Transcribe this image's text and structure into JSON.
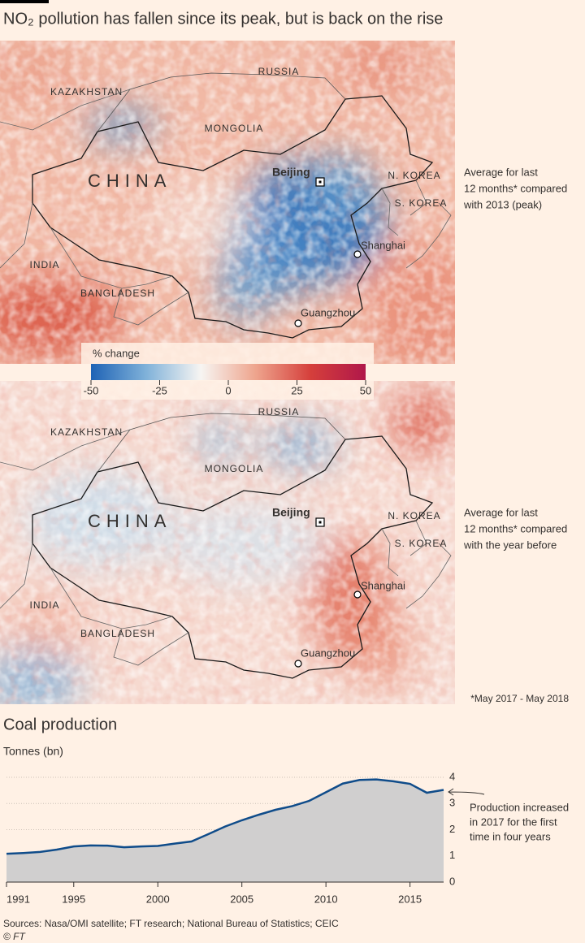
{
  "title": "NO₂ pollution has fallen since its peak, but is back on the rise",
  "maps": [
    {
      "labels": [
        "KAZAKHSTAN",
        "RUSSIA",
        "MONGOLIA",
        "CHINA",
        "Beijing",
        "N. KOREA",
        "S. KOREA",
        "INDIA",
        "BANGLADESH",
        "Shanghai",
        "Guangzhou"
      ],
      "note": [
        "Average for last",
        "12 months* compared",
        "with 2013 (peak)"
      ]
    },
    {
      "labels": [
        "KAZAKHSTAN",
        "RUSSIA",
        "MONGOLIA",
        "CHINA",
        "Beijing",
        "N. KOREA",
        "S. KOREA",
        "INDIA",
        "BANGLADESH",
        "Shanghai",
        "Guangzhou"
      ],
      "note": [
        "Average for last",
        "12 months* compared",
        "with the year before"
      ]
    }
  ],
  "color_scale": {
    "title": "% change",
    "range": [
      -50,
      50
    ],
    "ticks": [
      -50,
      -25,
      0,
      25,
      50
    ],
    "colors": [
      "#1f63b5",
      "#7fb1d9",
      "#f7f5f2",
      "#eea48d",
      "#d53f3b",
      "#b0174a"
    ]
  },
  "footnote": "*May 2017 - May 2018",
  "chart_data": {
    "type": "area",
    "title": "Coal production",
    "y_label": "Tonnes (bn)",
    "x": [
      1991,
      1992,
      1993,
      1994,
      1995,
      1996,
      1997,
      1998,
      1999,
      2000,
      2001,
      2002,
      2003,
      2004,
      2005,
      2006,
      2007,
      2008,
      2009,
      2010,
      2011,
      2012,
      2013,
      2014,
      2015,
      2016,
      2017
    ],
    "series": [
      {
        "name": "Coal production",
        "color": "#0f4c8a",
        "fill": "#d0cfcf",
        "values": [
          1.08,
          1.11,
          1.15,
          1.24,
          1.36,
          1.4,
          1.39,
          1.33,
          1.36,
          1.38,
          1.47,
          1.55,
          1.83,
          2.12,
          2.36,
          2.57,
          2.76,
          2.9,
          3.1,
          3.43,
          3.76,
          3.9,
          3.92,
          3.85,
          3.75,
          3.41,
          3.52
        ]
      }
    ],
    "xlim": [
      1991,
      2017
    ],
    "ylim": [
      0,
      4
    ],
    "xticks": [
      1991,
      1995,
      2000,
      2005,
      2010,
      2015
    ],
    "yticks": [
      0,
      1,
      2,
      3,
      4
    ],
    "grid": true,
    "annotation": [
      "Production increased",
      "in 2017 for the first",
      "time in four years"
    ]
  },
  "sources": "Sources: Nasa/OMI satellite; FT research; National Bureau of Statistics; CEIC",
  "credit": "© FT"
}
